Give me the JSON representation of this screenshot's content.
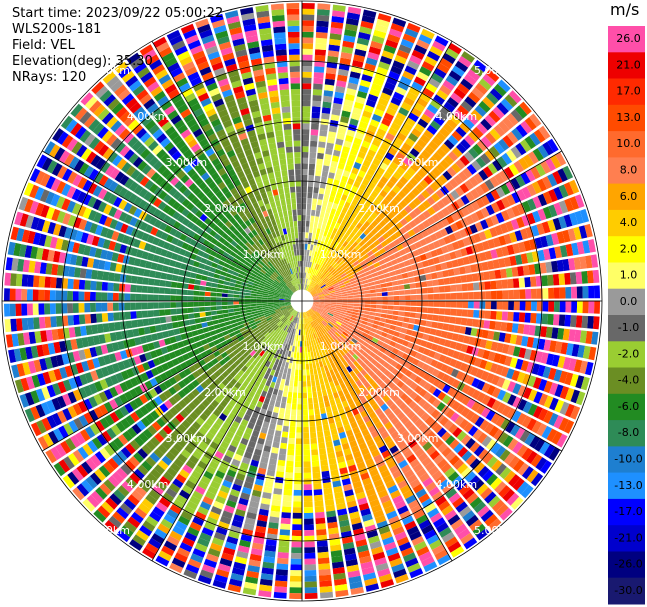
{
  "info_lines": [
    "Start time: 2023/09/22 05:00:22",
    "WLS200s-181",
    "Field: VEL",
    "Elevation(deg): 35.30",
    "NRays: 120"
  ],
  "chart_data": {
    "type": "heatmap",
    "projection": "polar-ppi",
    "field": "VEL",
    "instrument": "WLS200s-181",
    "start_time": "2023/09/22 05:00:22",
    "elevation_deg": 35.3,
    "n_rays": 120,
    "range_rings_km": [
      1.0,
      2.0,
      3.0,
      4.0,
      5.0
    ],
    "range_ring_labels": [
      "1.00km",
      "2.00km",
      "3.00km",
      "4.00km",
      "5.00km"
    ],
    "max_range_km": 5.0,
    "grid": true,
    "radial_lines": 12,
    "colorbar": {
      "unit": "m/s",
      "ticks": [
        "26.0",
        "21.0",
        "17.0",
        "13.0",
        "10.0",
        "8.0",
        "6.0",
        "4.0",
        "2.0",
        "1.0",
        "0.0",
        "-1.0",
        "-2.0",
        "-4.0",
        "-6.0",
        "-8.0",
        "-10.0",
        "-13.0",
        "-17.0",
        "-21.0",
        "-26.0",
        "-30.0"
      ],
      "colors": [
        "#ff4fa9",
        "#ee0000",
        "#ff2a00",
        "#ff4b00",
        "#ff6a2d",
        "#ff7f50",
        "#ffa500",
        "#ffcc00",
        "#ffff00",
        "#ffff66",
        "#9a9a9a",
        "#686868",
        "#9acd32",
        "#6b8e23",
        "#228b22",
        "#2e8b57",
        "#1e7fd0",
        "#1e90ff",
        "#0000ff",
        "#0000cd",
        "#000080",
        "#191970"
      ]
    },
    "wind_pattern": {
      "mean_speed_ms": 9.0,
      "toward_azimuth_deg": 100
    }
  }
}
